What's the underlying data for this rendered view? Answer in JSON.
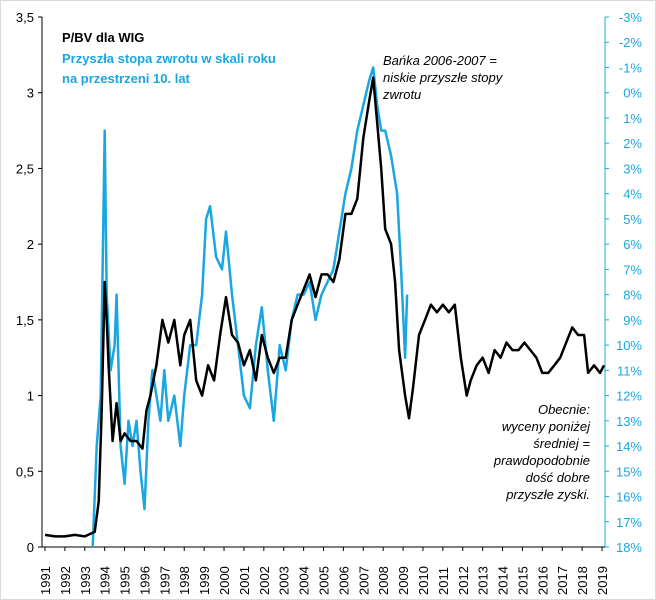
{
  "chart_data": {
    "type": "line",
    "title": "P/BV dla WIG",
    "subtitle_lines": [
      "Przyszła stopa zwrotu w skali roku",
      "na przestrzeni 10. lat"
    ],
    "annotations": [
      {
        "lines": [
          "Bańka 2006-2007 =",
          "niskie przyszłe stopy",
          "zwrotu"
        ]
      },
      {
        "lines": [
          "Obecnie:",
          "wyceny poniżej",
          "średniej =",
          "prawdopodobnie",
          "dość dobre",
          "przyszłe zyski."
        ]
      }
    ],
    "xlim": [
      1990.85,
      2019.15
    ],
    "xticks": [
      1991,
      1992,
      1993,
      1994,
      1995,
      1996,
      1997,
      1998,
      1999,
      2000,
      2001,
      2002,
      2003,
      2004,
      2005,
      2006,
      2007,
      2008,
      2009,
      2010,
      2011,
      2012,
      2013,
      2014,
      2015,
      2016,
      2017,
      2018,
      2019
    ],
    "ylim": [
      0,
      3.5
    ],
    "yticks": [
      0,
      {
        "value": 0.5,
        "label": "0,5"
      },
      1,
      {
        "value": 1.5,
        "label": "1,5"
      },
      2,
      {
        "value": 2.5,
        "label": "2,5"
      },
      3,
      {
        "value": 3.5,
        "label": "3,5"
      }
    ],
    "y2lim": [
      18,
      -3
    ],
    "y2ticks": [
      {
        "value": -3,
        "label": "-3%"
      },
      {
        "value": -2,
        "label": "-2%"
      },
      {
        "value": -1,
        "label": "-1%"
      },
      {
        "value": 0,
        "label": "0%"
      },
      {
        "value": 1,
        "label": "1%"
      },
      {
        "value": 2,
        "label": "2%"
      },
      {
        "value": 3,
        "label": "3%"
      },
      {
        "value": 4,
        "label": "4%"
      },
      {
        "value": 5,
        "label": "5%"
      },
      {
        "value": 6,
        "label": "6%"
      },
      {
        "value": 7,
        "label": "7%"
      },
      {
        "value": 8,
        "label": "8%"
      },
      {
        "value": 9,
        "label": "9%"
      },
      {
        "value": 10,
        "label": "10%"
      },
      {
        "value": 11,
        "label": "11%"
      },
      {
        "value": 12,
        "label": "12%"
      },
      {
        "value": 13,
        "label": "13%"
      },
      {
        "value": 14,
        "label": "14%"
      },
      {
        "value": 15,
        "label": "15%"
      },
      {
        "value": 16,
        "label": "16%"
      },
      {
        "value": 17,
        "label": "17%"
      },
      {
        "value": 18,
        "label": "18%"
      }
    ],
    "series": [
      {
        "color": "#000000",
        "axis": "y",
        "x": [
          1991.0,
          1991.5,
          1992.0,
          1992.5,
          1993.0,
          1993.5,
          1993.7,
          1993.85,
          1994.0,
          1994.1,
          1994.2,
          1994.4,
          1994.6,
          1994.8,
          1995.0,
          1995.3,
          1995.6,
          1995.9,
          1996.1,
          1996.3,
          1996.6,
          1996.9,
          1997.2,
          1997.5,
          1997.8,
          1998.0,
          1998.3,
          1998.6,
          1998.9,
          1999.2,
          1999.5,
          1999.8,
          2000.1,
          2000.4,
          2000.7,
          2001.0,
          2001.3,
          2001.6,
          2001.9,
          2002.2,
          2002.5,
          2002.8,
          2003.1,
          2003.4,
          2003.7,
          2004.0,
          2004.3,
          2004.6,
          2004.9,
          2005.2,
          2005.5,
          2005.8,
          2006.1,
          2006.4,
          2006.7,
          2007.0,
          2007.3,
          2007.5,
          2007.7,
          2007.9,
          2008.1,
          2008.4,
          2008.6,
          2008.8,
          2009.1,
          2009.3,
          2009.5,
          2009.8,
          2010.1,
          2010.4,
          2010.7,
          2011.0,
          2011.3,
          2011.6,
          2011.9,
          2012.2,
          2012.4,
          2012.7,
          2013.0,
          2013.3,
          2013.6,
          2013.9,
          2014.2,
          2014.5,
          2014.8,
          2015.1,
          2015.4,
          2015.7,
          2016.0,
          2016.3,
          2016.6,
          2016.9,
          2017.2,
          2017.5,
          2017.8,
          2018.1,
          2018.3,
          2018.6,
          2018.9,
          2019.1
        ],
        "values": [
          0.08,
          0.07,
          0.07,
          0.08,
          0.07,
          0.1,
          0.3,
          0.9,
          1.75,
          1.5,
          1.2,
          0.7,
          0.95,
          0.7,
          0.75,
          0.7,
          0.7,
          0.65,
          0.9,
          1.0,
          1.2,
          1.5,
          1.35,
          1.5,
          1.2,
          1.4,
          1.5,
          1.1,
          1.0,
          1.2,
          1.1,
          1.4,
          1.65,
          1.4,
          1.35,
          1.2,
          1.3,
          1.1,
          1.4,
          1.25,
          1.15,
          1.25,
          1.25,
          1.5,
          1.6,
          1.7,
          1.8,
          1.65,
          1.8,
          1.8,
          1.75,
          1.9,
          2.2,
          2.2,
          2.3,
          2.7,
          2.95,
          3.1,
          2.8,
          2.5,
          2.1,
          2.0,
          1.75,
          1.3,
          1.0,
          0.85,
          1.05,
          1.4,
          1.5,
          1.6,
          1.55,
          1.6,
          1.55,
          1.6,
          1.25,
          1.0,
          1.1,
          1.2,
          1.25,
          1.15,
          1.3,
          1.25,
          1.35,
          1.3,
          1.3,
          1.35,
          1.3,
          1.25,
          1.15,
          1.15,
          1.2,
          1.25,
          1.35,
          1.45,
          1.4,
          1.4,
          1.15,
          1.2,
          1.15,
          1.2
        ]
      },
      {
        "color": "#1aa7e0",
        "axis": "y2",
        "x": [
          1993.4,
          1993.6,
          1993.8,
          1994.0,
          1994.1,
          1994.3,
          1994.5,
          1994.6,
          1994.8,
          1995.0,
          1995.2,
          1995.4,
          1995.6,
          1995.8,
          1996.0,
          1996.2,
          1996.4,
          1996.6,
          1996.8,
          1997.0,
          1997.2,
          1997.5,
          1997.8,
          1998.0,
          1998.3,
          1998.6,
          1998.9,
          1999.1,
          1999.3,
          1999.6,
          1999.9,
          2000.1,
          2000.4,
          2000.7,
          2001.0,
          2001.3,
          2001.6,
          2001.9,
          2002.2,
          2002.5,
          2002.8,
          2003.1,
          2003.4,
          2003.7,
          2004.0,
          2004.3,
          2004.6,
          2004.9,
          2005.2,
          2005.5,
          2005.8,
          2006.1,
          2006.4,
          2006.7,
          2007.0,
          2007.3,
          2007.5,
          2007.7,
          2007.9,
          2008.1,
          2008.4,
          2008.7,
          2008.9,
          2009.1,
          2009.2
        ],
        "values": [
          18,
          14,
          12,
          1.5,
          8,
          11,
          10,
          8,
          14,
          15.5,
          13,
          14,
          13,
          15,
          16.5,
          13,
          11,
          12,
          13,
          11,
          13,
          12,
          14,
          12,
          10,
          10,
          8,
          5,
          4.5,
          6.5,
          7,
          5.5,
          8,
          10,
          12,
          12.5,
          10,
          8.5,
          11,
          13,
          10,
          11,
          9,
          8,
          8,
          7.5,
          9,
          8,
          7.5,
          7,
          5.5,
          4,
          3,
          1.5,
          0.5,
          -0.5,
          -1,
          0.5,
          1.5,
          1.5,
          2.5,
          4,
          7,
          10.5,
          8
        ]
      }
    ]
  }
}
